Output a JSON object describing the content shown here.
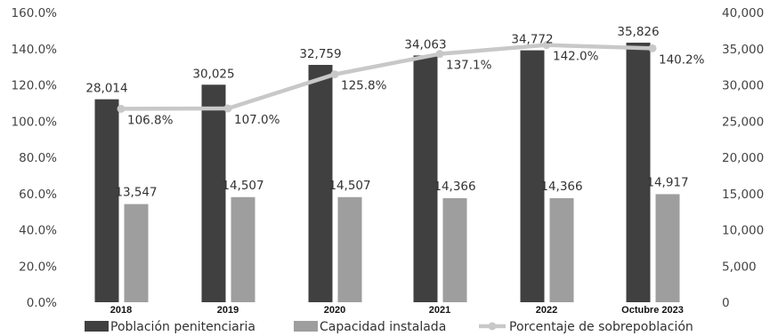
{
  "chart_data": {
    "type": "bar",
    "categories": [
      "2018",
      "2019",
      "2020",
      "2021",
      "2022",
      "Octubre 2023"
    ],
    "series": [
      {
        "name": "Población penitenciaria",
        "kind": "bar",
        "axis": "right",
        "color": "#404040",
        "values": [
          28014,
          30025,
          32759,
          34063,
          34772,
          35826
        ],
        "labels": [
          "28,014",
          "30,025",
          "32,759",
          "34,063",
          "34,772",
          "35,826"
        ]
      },
      {
        "name": "Capacidad instalada",
        "kind": "bar",
        "axis": "right",
        "color": "#9e9e9e",
        "values": [
          13547,
          14507,
          14507,
          14366,
          14366,
          14917
        ],
        "labels": [
          "13,547",
          "14,507",
          "14,507",
          "14,366",
          "14,366",
          "14,917"
        ]
      },
      {
        "name": "Porcentaje de sobrepoblación",
        "kind": "line",
        "axis": "left",
        "color": "#c8c8c8",
        "values": [
          106.8,
          107.0,
          125.8,
          137.1,
          142.0,
          140.2
        ],
        "labels": [
          "106.8%",
          "107.0%",
          "125.8%",
          "137.1%",
          "142.0%",
          "140.2%"
        ]
      }
    ],
    "y_left": {
      "range": [
        0,
        160
      ],
      "ticks": [
        "0.0%",
        "20.0%",
        "40.0%",
        "60.0%",
        "80.0%",
        "100.0%",
        "120.0%",
        "140.0%",
        "160.0%"
      ]
    },
    "y_right": {
      "range": [
        0,
        40000
      ],
      "ticks": [
        "0",
        "5,000",
        "10,000",
        "15,000",
        "20,000",
        "25,000",
        "30,000",
        "35,000",
        "40,000"
      ]
    },
    "grid": false,
    "legend_position": "bottom"
  }
}
